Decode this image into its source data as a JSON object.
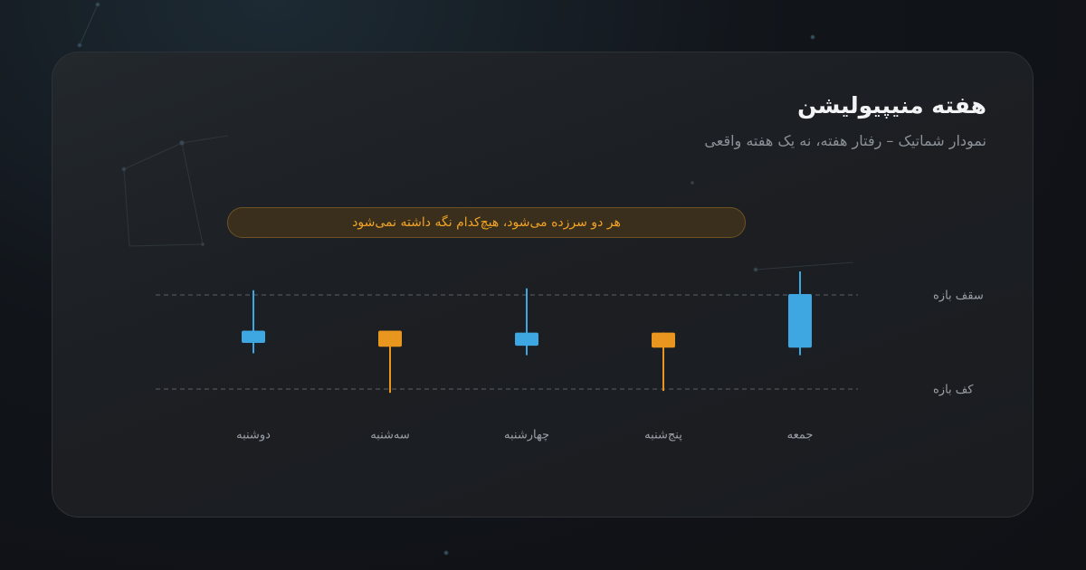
{
  "chart_data": {
    "type": "candlestick",
    "title": "هفته منیپیولیشن",
    "subtitle": "نمودار شماتیک – رفتار هفته، نه یک هفته واقعی",
    "annotation": "هر دو سرزده می‌شود، هیچ‌کدام نگه داشته نمی‌شود",
    "categories": [
      "دوشنبه",
      "سه‌شنبه",
      "چهارشنبه",
      "پنج‌شنبه",
      "جمعه"
    ],
    "open": [
      49,
      62,
      46,
      60,
      44
    ],
    "high": [
      105,
      62,
      107,
      60,
      125
    ],
    "low": [
      38,
      -4,
      36,
      -2,
      36
    ],
    "close": [
      62,
      45,
      60,
      44,
      101
    ],
    "up_color": "#3ea6e0",
    "down_color": "#e8961e",
    "ylim": [
      -10,
      135
    ],
    "reference_lines": [
      {
        "value": 100,
        "label": "سقف بازه"
      },
      {
        "value": 0,
        "label": "کف بازه"
      }
    ]
  }
}
